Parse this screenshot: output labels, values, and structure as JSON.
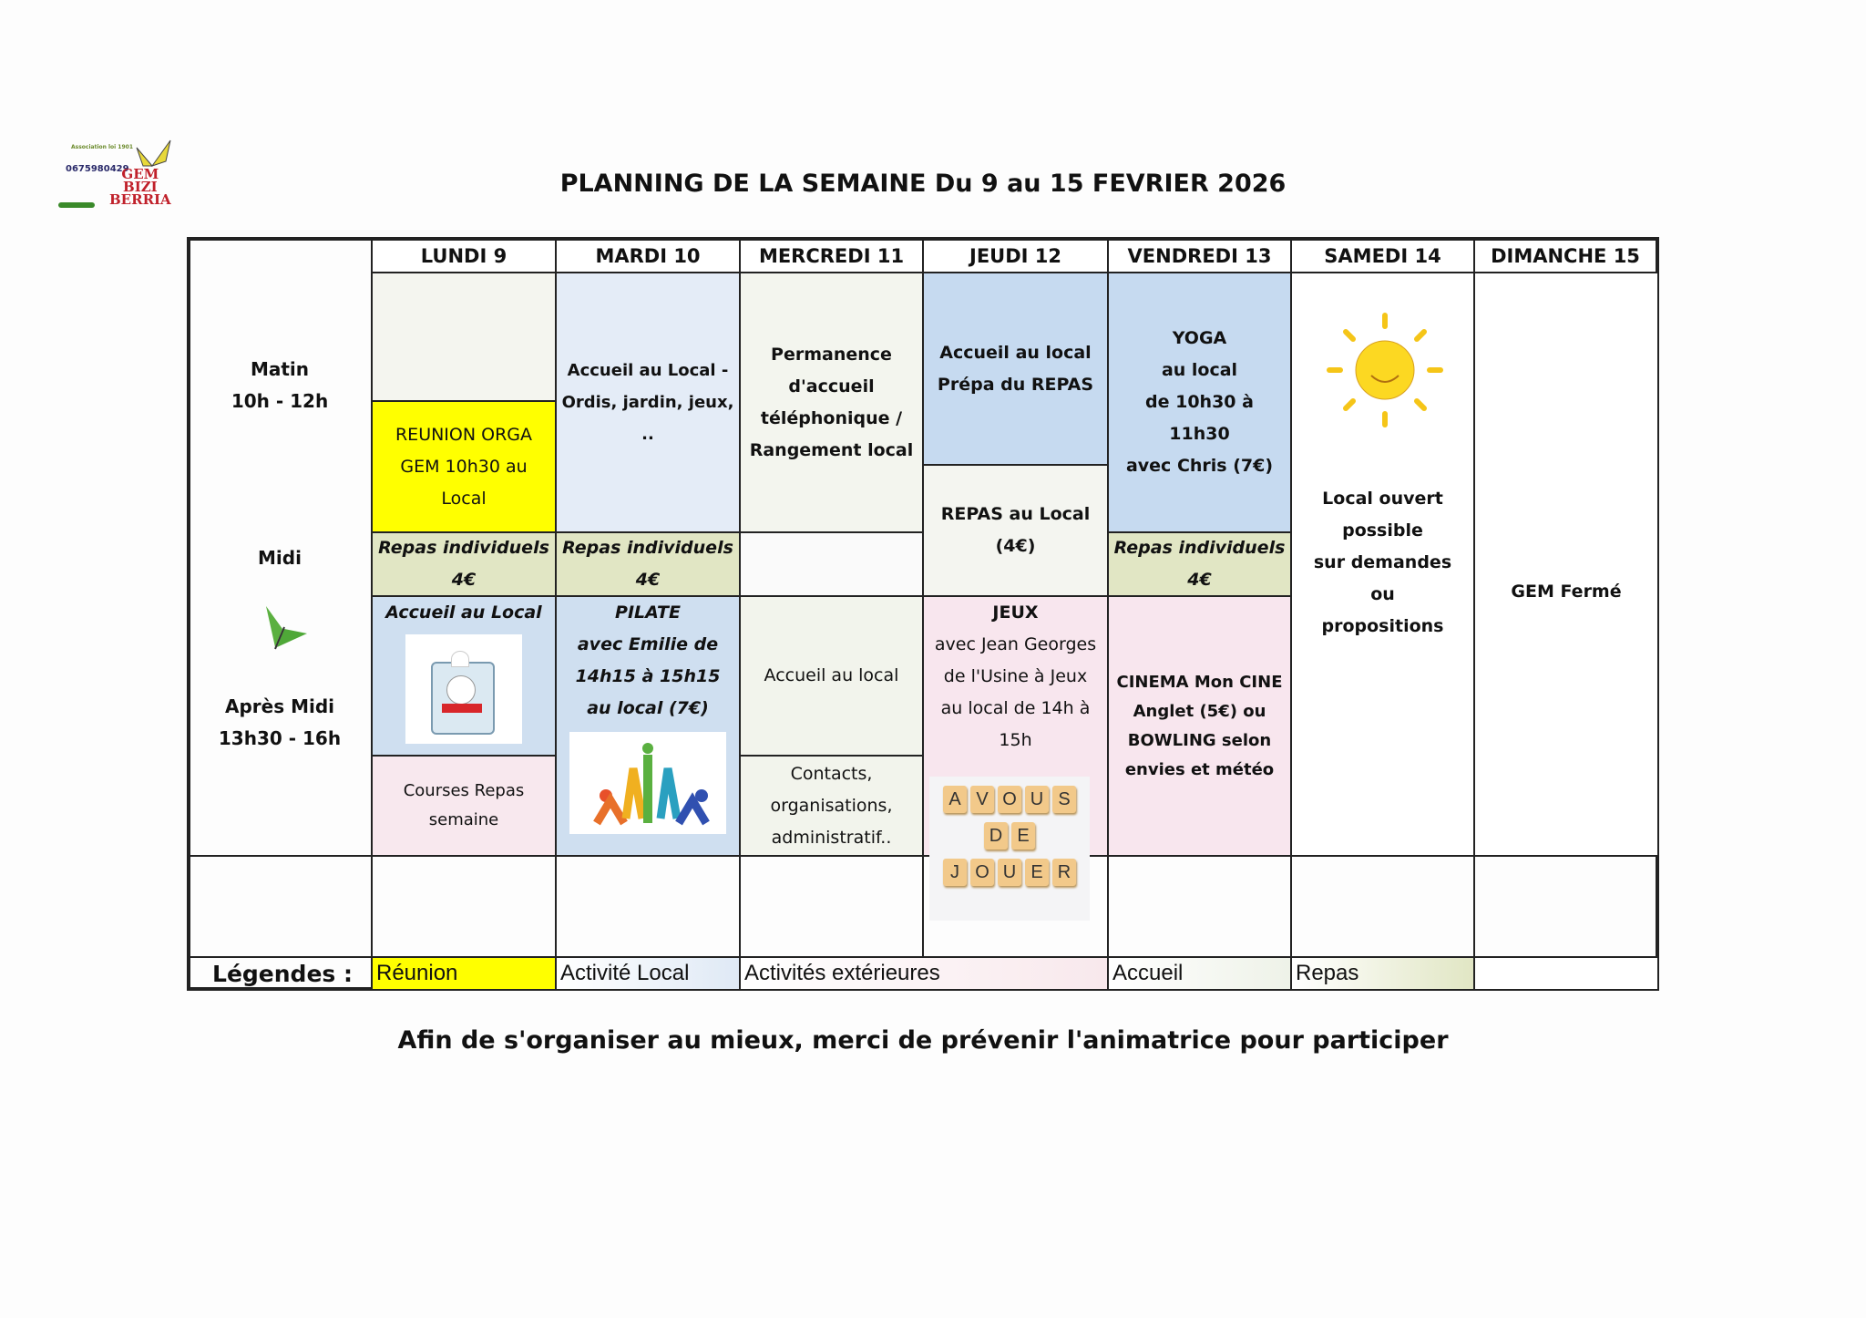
{
  "logo": {
    "association": "Association loi 1901",
    "phone": "0675980429",
    "name_lines": [
      "GEM",
      "BIZI",
      "BERRIA"
    ]
  },
  "title": "PLANNING DE LA SEMAINE Du 9 au 15 FEVRIER 2026",
  "days": [
    "LUNDI 9",
    "MARDI 10",
    "MERCREDI 11",
    "JEUDI 12",
    "VENDREDI 13",
    "SAMEDI 14",
    "DIMANCHE 15"
  ],
  "periods": {
    "morning": [
      "Matin",
      "10h - 12h"
    ],
    "noon": "Midi",
    "afternoon": [
      "Après Midi",
      "13h30 - 16h"
    ]
  },
  "lundi": {
    "reunion": [
      "REUNION ORGA",
      "GEM 10h30 au",
      "Local"
    ],
    "repas": [
      "Repas individuels",
      "4€"
    ],
    "accueil": "Accueil au Local",
    "courses": [
      "Courses Repas",
      "semaine"
    ]
  },
  "mardi": {
    "morning": [
      "Accueil au Local -",
      "Ordis, jardin, jeux,",
      ".."
    ],
    "repas": [
      "Repas individuels",
      "4€"
    ],
    "pilate": [
      "PILATE",
      "avec Emilie de",
      "14h15 à 15h15",
      "au local (7€)"
    ]
  },
  "mercredi": {
    "morning": [
      "Permanence",
      "d'accueil",
      "téléphonique  /",
      "Rangement local"
    ],
    "accueil": "Accueil au local",
    "contacts": [
      "Contacts,",
      "organisations,",
      "administratif.."
    ]
  },
  "jeudi": {
    "morning": [
      "Accueil au local",
      "Prépa du REPAS"
    ],
    "repas": [
      "REPAS au Local",
      "(4€)"
    ],
    "jeux": [
      "JEUX",
      "avec Jean Georges",
      "de l'Usine à Jeux",
      "au local de 14h à",
      "15h"
    ],
    "tiles": [
      [
        "A",
        "V",
        "O",
        "U",
        "S"
      ],
      [
        "D",
        "E"
      ],
      [
        "J",
        "O",
        "U",
        "E",
        "R"
      ]
    ]
  },
  "vendredi": {
    "yoga": [
      "YOGA",
      "au local",
      "de 10h30 à",
      "11h30",
      "avec Chris (7€)"
    ],
    "repas": [
      "Repas individuels",
      "4€"
    ],
    "cinema": [
      "CINEMA Mon CINE",
      "Anglet (5€)  ou",
      "BOWLING selon",
      "envies et météo"
    ]
  },
  "samedi": [
    "Local ouvert",
    "possible",
    "sur demandes",
    "ou",
    "propositions"
  ],
  "dimanche": "GEM Fermé",
  "legend": {
    "label": "Légendes :",
    "items": [
      {
        "label": "Réunion",
        "color": "#ffff00"
      },
      {
        "label": "Activité Local",
        "color": "#dfe9f5"
      },
      {
        "label": "Activités extérieures",
        "color": "#f8e8ec"
      },
      {
        "label": "Accueil",
        "color": "#eef2e8"
      },
      {
        "label": "Repas",
        "color": "#e1e6c4"
      }
    ]
  },
  "footer": "Afin de s'organiser au mieux, merci de prévenir l'animatrice pour participer"
}
